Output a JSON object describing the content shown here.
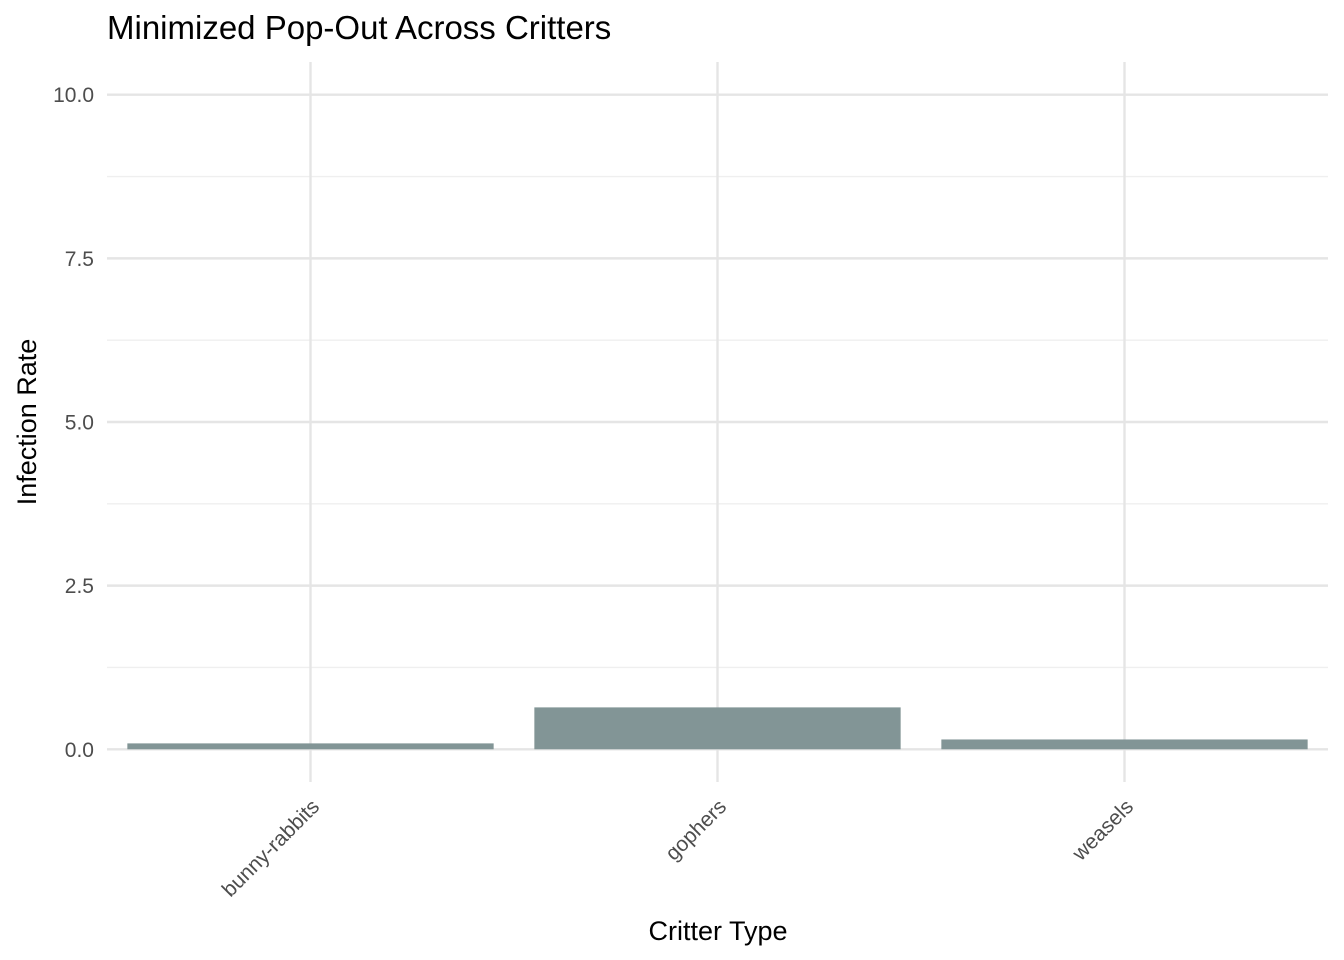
{
  "chart_data": {
    "type": "bar",
    "title": "Minimized Pop-Out Across Critters",
    "xlabel": "Critter Type",
    "ylabel": "Infection Rate",
    "categories": [
      "bunny-rabbits",
      "gophers",
      "weasels"
    ],
    "values": [
      0.09,
      0.64,
      0.15
    ],
    "ylim": [
      -0.5,
      10.5
    ],
    "yticks": [
      0.0,
      2.5,
      5.0,
      7.5,
      10.0
    ],
    "ytick_labels": [
      "0.0",
      "2.5",
      "5.0",
      "7.5",
      "10.0"
    ],
    "bar_color": "#829596",
    "grid": true,
    "legend": "none"
  }
}
